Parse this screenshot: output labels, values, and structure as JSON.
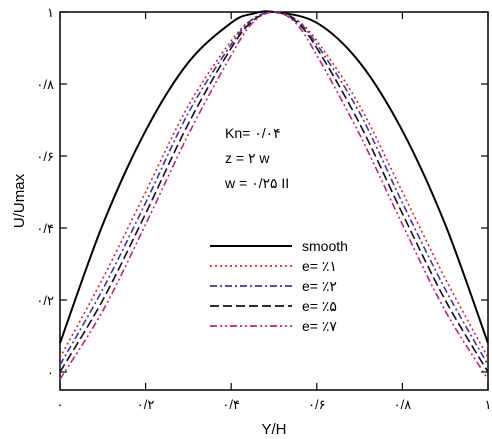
{
  "chart_data": {
    "type": "line",
    "xlabel": "Y/H",
    "ylabel": "U/Umax",
    "xlim": [
      0,
      1
    ],
    "ylim": [
      -0.05,
      1
    ],
    "x_ticks": [
      {
        "value": 0,
        "label": "۰"
      },
      {
        "value": 0.2,
        "label": "۰/۲"
      },
      {
        "value": 0.4,
        "label": "۰/۴"
      },
      {
        "value": 0.6,
        "label": "۰/۶"
      },
      {
        "value": 0.8,
        "label": "۰/۸"
      },
      {
        "value": 1,
        "label": "۱"
      }
    ],
    "y_ticks": [
      {
        "value": 0,
        "label": "۰"
      },
      {
        "value": 0.2,
        "label": "۰/۲"
      },
      {
        "value": 0.4,
        "label": "۰/۴"
      },
      {
        "value": 0.6,
        "label": "۰/۶"
      },
      {
        "value": 0.8,
        "label": "۰/۸"
      },
      {
        "value": 1,
        "label": "۱"
      }
    ],
    "annotations": [
      "Kn= ۰/۰۴",
      "z = ۲ w",
      "w = ۰/۲۵ II"
    ],
    "legend_position": "center",
    "grid": false,
    "series": [
      {
        "name": "smooth",
        "color": "#000000",
        "dash": "solid",
        "x": [
          0,
          0.1,
          0.2,
          0.3,
          0.4,
          0.45,
          0.5,
          0.6,
          0.7,
          0.8,
          0.9,
          1
        ],
        "y": [
          0.08,
          0.41,
          0.67,
          0.86,
          0.97,
          0.995,
          1.0,
          0.97,
          0.86,
          0.67,
          0.41,
          0.08
        ]
      },
      {
        "name": "e= ٪۱",
        "color": "#e0201a",
        "dash": "dotted",
        "x": [
          0,
          0.1,
          0.2,
          0.3,
          0.4,
          0.45,
          0.5,
          0.55,
          0.6,
          0.7,
          0.8,
          0.9,
          1
        ],
        "y": [
          0.04,
          0.26,
          0.5,
          0.74,
          0.92,
          0.98,
          1.0,
          0.98,
          0.92,
          0.74,
          0.5,
          0.26,
          0.04
        ]
      },
      {
        "name": "e= ٪۲",
        "color": "#3a3aa8",
        "dash": "dashdot",
        "x": [
          0,
          0.1,
          0.2,
          0.3,
          0.4,
          0.45,
          0.5,
          0.55,
          0.6,
          0.7,
          0.8,
          0.9,
          1
        ],
        "y": [
          0.02,
          0.23,
          0.47,
          0.72,
          0.91,
          0.98,
          1.0,
          0.98,
          0.91,
          0.72,
          0.47,
          0.23,
          0.02
        ]
      },
      {
        "name": "e= ٪۵",
        "color": "#111111",
        "dash": "dashed",
        "x": [
          0,
          0.1,
          0.2,
          0.3,
          0.4,
          0.45,
          0.5,
          0.55,
          0.6,
          0.7,
          0.8,
          0.9,
          1
        ],
        "y": [
          0.0,
          0.2,
          0.44,
          0.69,
          0.9,
          0.975,
          1.0,
          0.975,
          0.9,
          0.69,
          0.44,
          0.2,
          0.0
        ]
      },
      {
        "name": "e= ٪۷",
        "color": "#c0208a",
        "dash": "dashdotdot",
        "x": [
          0,
          0.1,
          0.2,
          0.3,
          0.4,
          0.45,
          0.5,
          0.55,
          0.6,
          0.7,
          0.8,
          0.9,
          1
        ],
        "y": [
          -0.02,
          0.17,
          0.41,
          0.66,
          0.88,
          0.97,
          1.0,
          0.97,
          0.88,
          0.66,
          0.41,
          0.17,
          -0.02
        ]
      }
    ]
  }
}
